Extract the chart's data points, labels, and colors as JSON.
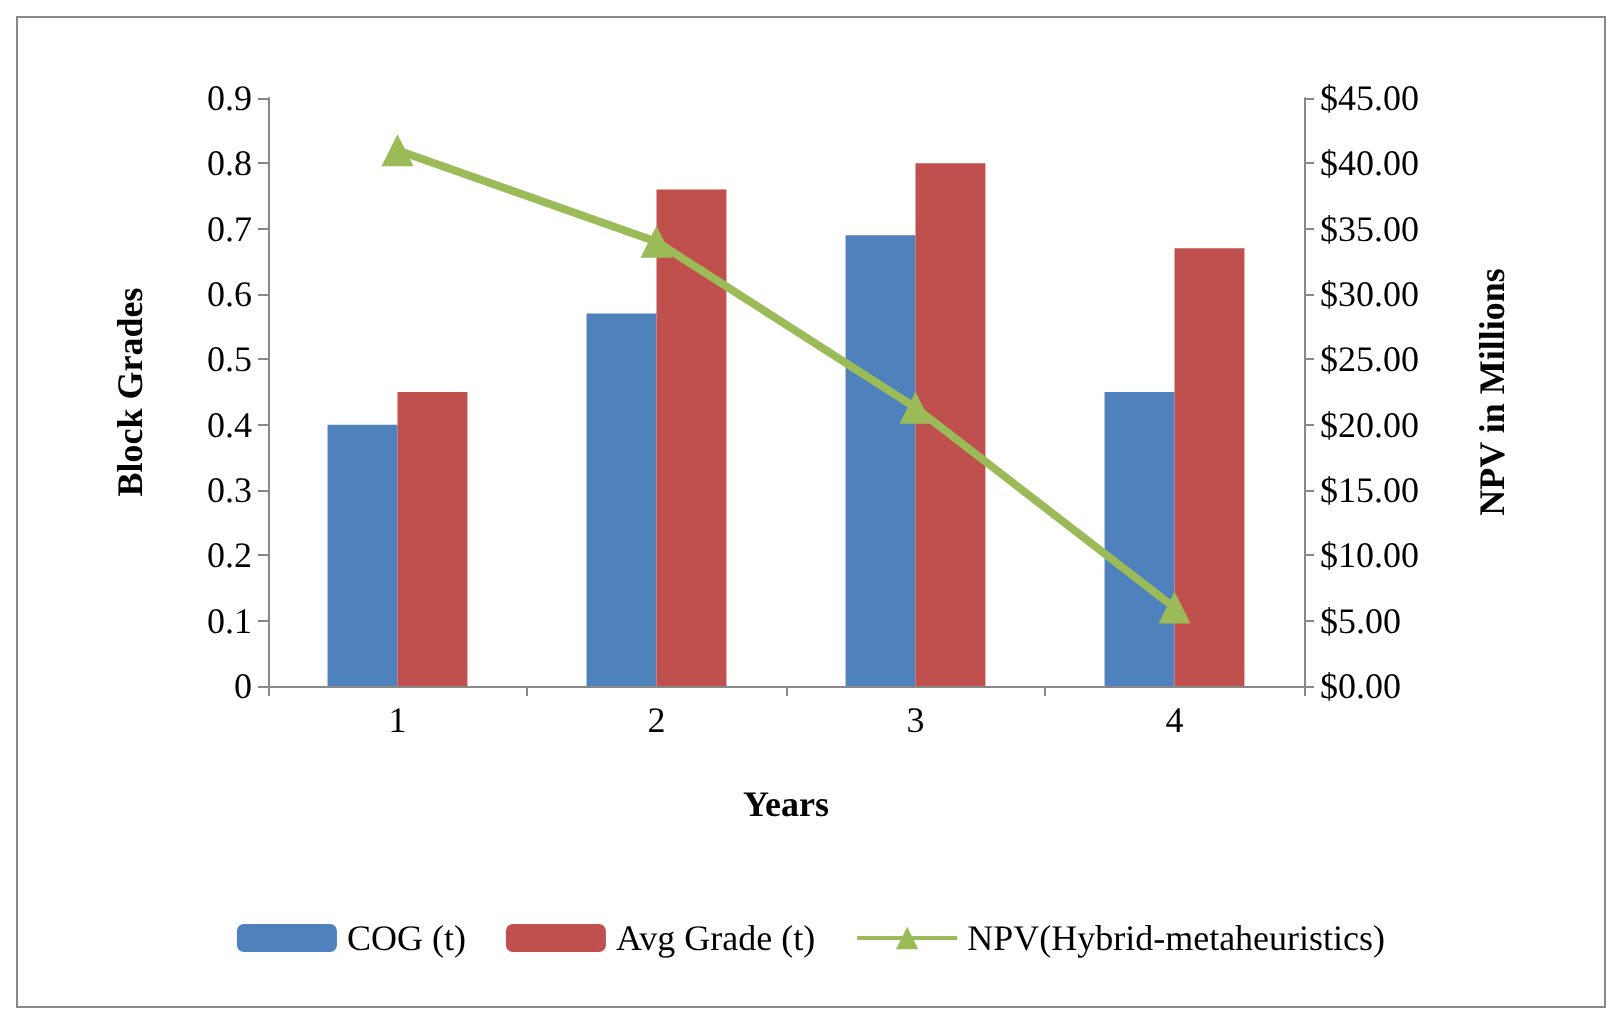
{
  "chart_data": {
    "type": "bar",
    "xlabel": "Years",
    "ylabel": "Block Grades",
    "y2label": "NPV in Millions",
    "categories": [
      "1",
      "2",
      "3",
      "4"
    ],
    "series": [
      {
        "name": "COG (t)",
        "color": "#4f81bd",
        "values": [
          0.4,
          0.57,
          0.69,
          0.45
        ]
      },
      {
        "name": "Avg Grade (t)",
        "color": "#c0504d",
        "values": [
          0.45,
          0.76,
          0.8,
          0.67
        ]
      },
      {
        "name": "NPV(Hybrid-metaheuristics)",
        "type": "line",
        "axis": "y2",
        "color": "#9bbb59",
        "marker": "triangle",
        "values": [
          41,
          34,
          21.3,
          6
        ]
      }
    ],
    "ylim": [
      0,
      0.9
    ],
    "yticks": [
      0,
      0.1,
      0.2,
      0.3,
      0.4,
      0.5,
      0.6,
      0.7,
      0.8,
      0.9
    ],
    "y2lim": [
      0,
      45
    ],
    "y2ticks": [
      {
        "value": 0,
        "label": "$0.00"
      },
      {
        "value": 5,
        "label": "$5.00"
      },
      {
        "value": 10,
        "label": "$10.00"
      },
      {
        "value": 15,
        "label": "$15.00"
      },
      {
        "value": 20,
        "label": "$20.00"
      },
      {
        "value": 25,
        "label": "$25.00"
      },
      {
        "value": 30,
        "label": "$30.00"
      },
      {
        "value": 35,
        "label": "$35.00"
      },
      {
        "value": 40,
        "label": "$40.00"
      },
      {
        "value": 45,
        "label": "$45.00"
      }
    ],
    "grid": false,
    "legend": "bottom"
  }
}
